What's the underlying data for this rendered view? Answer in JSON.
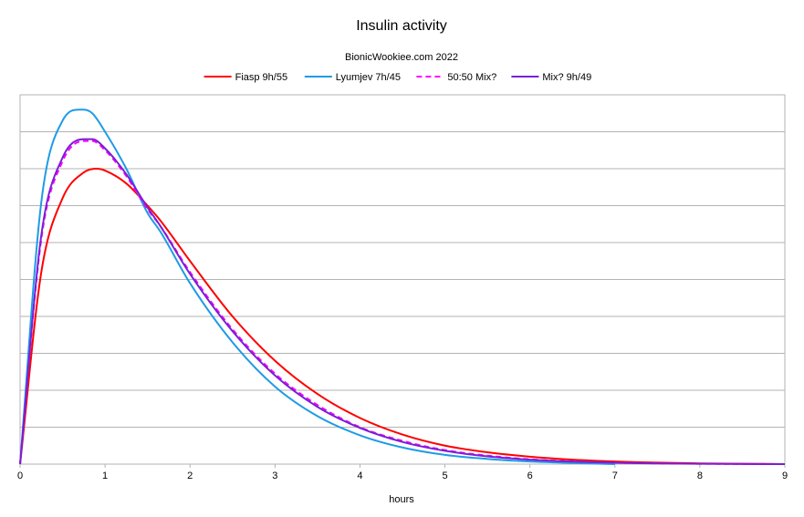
{
  "chart_data": {
    "type": "line",
    "title": "Insulin activity",
    "subtitle": "BionicWookiee.com 2022",
    "xlabel": "hours",
    "ylabel": "",
    "xlim": [
      0,
      9
    ],
    "ylim": [
      0,
      1
    ],
    "x_ticks": [
      0,
      1,
      2,
      3,
      4,
      5,
      6,
      7,
      8,
      9
    ],
    "x_tick_labels": [
      "0",
      "1",
      "2",
      "3",
      "4",
      "5",
      "6",
      "7",
      "8",
      "9"
    ],
    "y_gridlines": [
      0,
      0.1,
      0.2,
      0.3,
      0.4,
      0.5,
      0.6,
      0.7,
      0.8,
      0.9,
      1.0
    ],
    "y_tick_labels_shown": false,
    "grid": "horizontal",
    "legend_position": "top",
    "series": [
      {
        "name": "Fiasp 9h/55",
        "color": "#ff0000",
        "dash": "solid",
        "x": [
          0,
          0.25,
          0.5,
          0.75,
          0.9,
          1.0,
          1.25,
          1.5,
          1.65,
          2.0,
          2.5,
          3.0,
          3.5,
          4.0,
          4.5,
          5.0,
          5.5,
          6.0,
          6.5,
          7.0,
          7.5,
          8.0,
          8.5,
          9.0
        ],
        "y": [
          0,
          0.52,
          0.72,
          0.79,
          0.8,
          0.795,
          0.76,
          0.7,
          0.66,
          0.55,
          0.4,
          0.28,
          0.19,
          0.125,
          0.08,
          0.05,
          0.032,
          0.02,
          0.012,
          0.007,
          0.004,
          0.002,
          0.001,
          0
        ]
      },
      {
        "name": "Lyumjev 7h/45",
        "color": "#1e9be6",
        "dash": "solid",
        "x": [
          0,
          0.25,
          0.5,
          0.7,
          0.75,
          0.85,
          1.0,
          1.25,
          1.5,
          1.65,
          2.0,
          2.5,
          3.0,
          3.5,
          4.0,
          4.5,
          5.0,
          5.5,
          6.0,
          6.5,
          7.0
        ],
        "y": [
          0,
          0.71,
          0.93,
          0.96,
          0.96,
          0.95,
          0.9,
          0.8,
          0.68,
          0.63,
          0.49,
          0.33,
          0.21,
          0.13,
          0.078,
          0.045,
          0.025,
          0.014,
          0.007,
          0.003,
          0
        ]
      },
      {
        "name": "50:50 Mix?",
        "color": "#ff00ff",
        "dash": "dashed",
        "x": [
          0,
          0.25,
          0.5,
          0.75,
          0.85,
          1.0,
          1.25,
          1.5,
          1.65,
          2.0,
          2.5,
          3.0,
          3.5,
          4.0,
          4.5,
          5.0,
          5.5,
          6.0,
          6.5,
          7.0,
          7.5,
          8.0,
          8.5,
          9.0
        ],
        "y": [
          0,
          0.61,
          0.82,
          0.875,
          0.875,
          0.85,
          0.78,
          0.69,
          0.645,
          0.52,
          0.365,
          0.245,
          0.16,
          0.1,
          0.063,
          0.038,
          0.023,
          0.013,
          0.0075,
          0.004,
          0.002,
          0.001,
          0.0005,
          0
        ]
      },
      {
        "name": "Mix? 9h/49",
        "color": "#7a1fd6",
        "dash": "solid",
        "x": [
          0,
          0.25,
          0.5,
          0.75,
          0.85,
          1.0,
          1.25,
          1.5,
          1.65,
          2.0,
          2.5,
          3.0,
          3.5,
          4.0,
          4.5,
          5.0,
          5.5,
          6.0,
          6.5,
          7.0,
          7.5,
          8.0,
          8.5,
          9.0
        ],
        "y": [
          0,
          0.62,
          0.83,
          0.88,
          0.88,
          0.855,
          0.785,
          0.695,
          0.645,
          0.515,
          0.36,
          0.24,
          0.155,
          0.098,
          0.06,
          0.036,
          0.021,
          0.012,
          0.0068,
          0.0037,
          0.0019,
          0.0009,
          0.0004,
          0
        ]
      }
    ]
  }
}
